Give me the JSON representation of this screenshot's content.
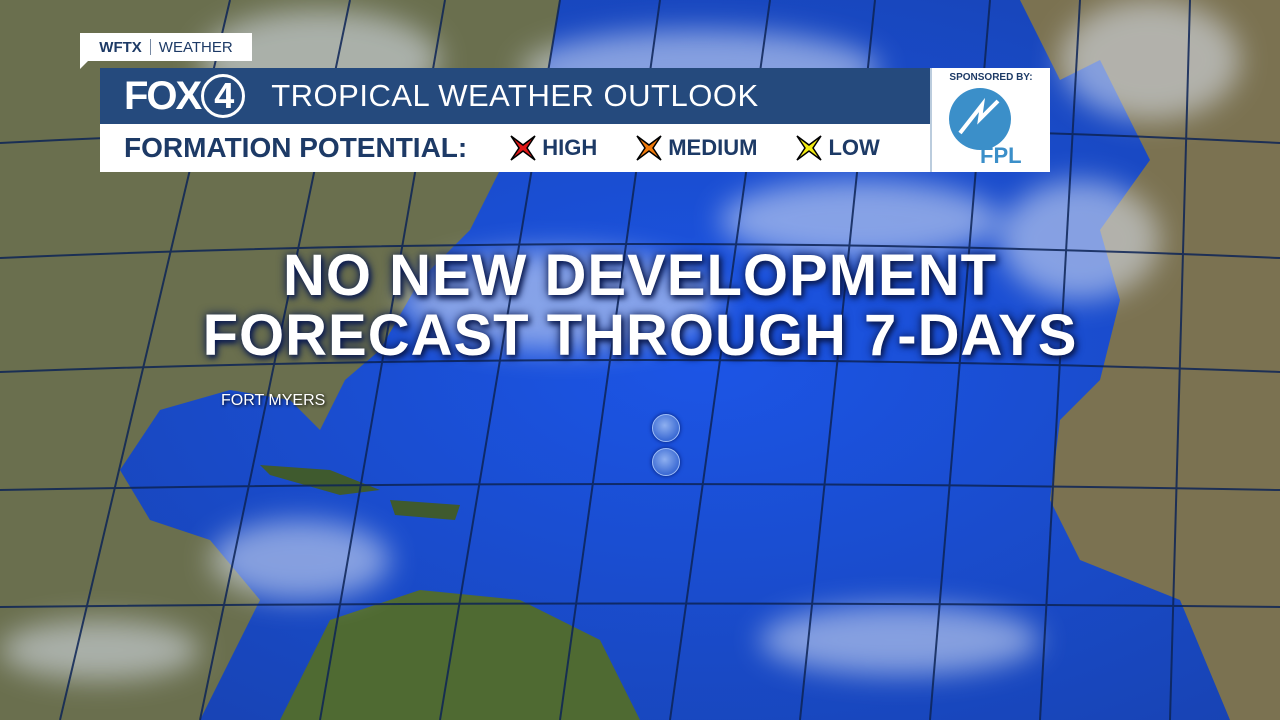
{
  "branding": {
    "station": "WFTX",
    "section": "WEATHER",
    "logo_text": "FOX",
    "logo_number": "4"
  },
  "header": {
    "title": "TROPICAL WEATHER OUTLOOK"
  },
  "legend": {
    "label": "FORMATION POTENTIAL:",
    "items": [
      {
        "label": "HIGH",
        "color": "#e01818"
      },
      {
        "label": "MEDIUM",
        "color": "#f07a0c"
      },
      {
        "label": "LOW",
        "color": "#f2ea12"
      }
    ]
  },
  "sponsor": {
    "label": "SPONSORED BY:",
    "name": "FPL"
  },
  "headline": {
    "line1": "NO NEW DEVELOPMENT",
    "line2": "FORECAST THROUGH 7-DAYS"
  },
  "map": {
    "city_label": "FORT MYERS",
    "ocean_color": "#1a4fd0",
    "land_color": "#5d6a3e"
  }
}
